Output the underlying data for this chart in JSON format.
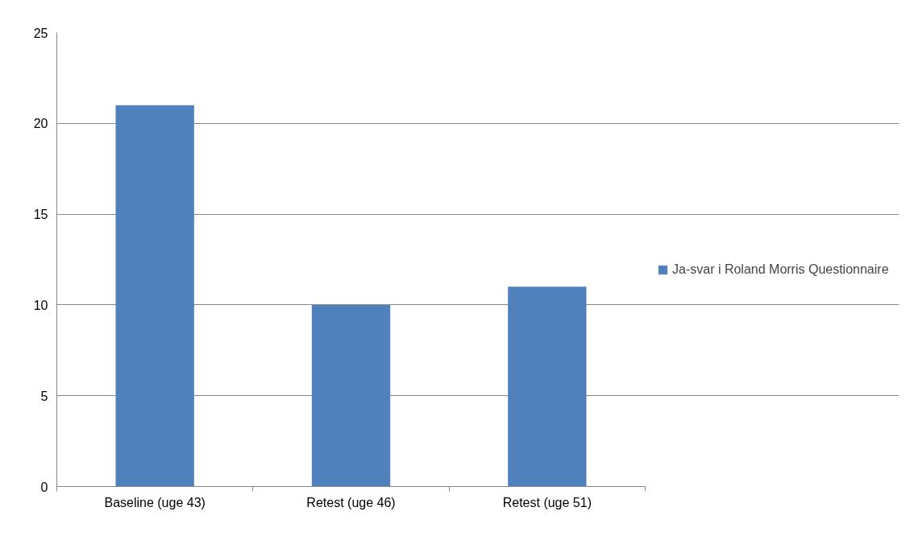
{
  "chart_data": {
    "type": "bar",
    "categories": [
      "Baseline (uge 43)",
      "Retest (uge 46)",
      "Retest (uge 51)"
    ],
    "series": [
      {
        "name": "Ja-svar i Roland Morris Questionnaire",
        "color": "#4f81bd",
        "values": [
          21,
          10,
          11
        ]
      }
    ],
    "ylim": [
      0,
      25
    ],
    "yticks": [
      0,
      5,
      10,
      15,
      20,
      25
    ],
    "grid": "y",
    "legend": "right"
  }
}
